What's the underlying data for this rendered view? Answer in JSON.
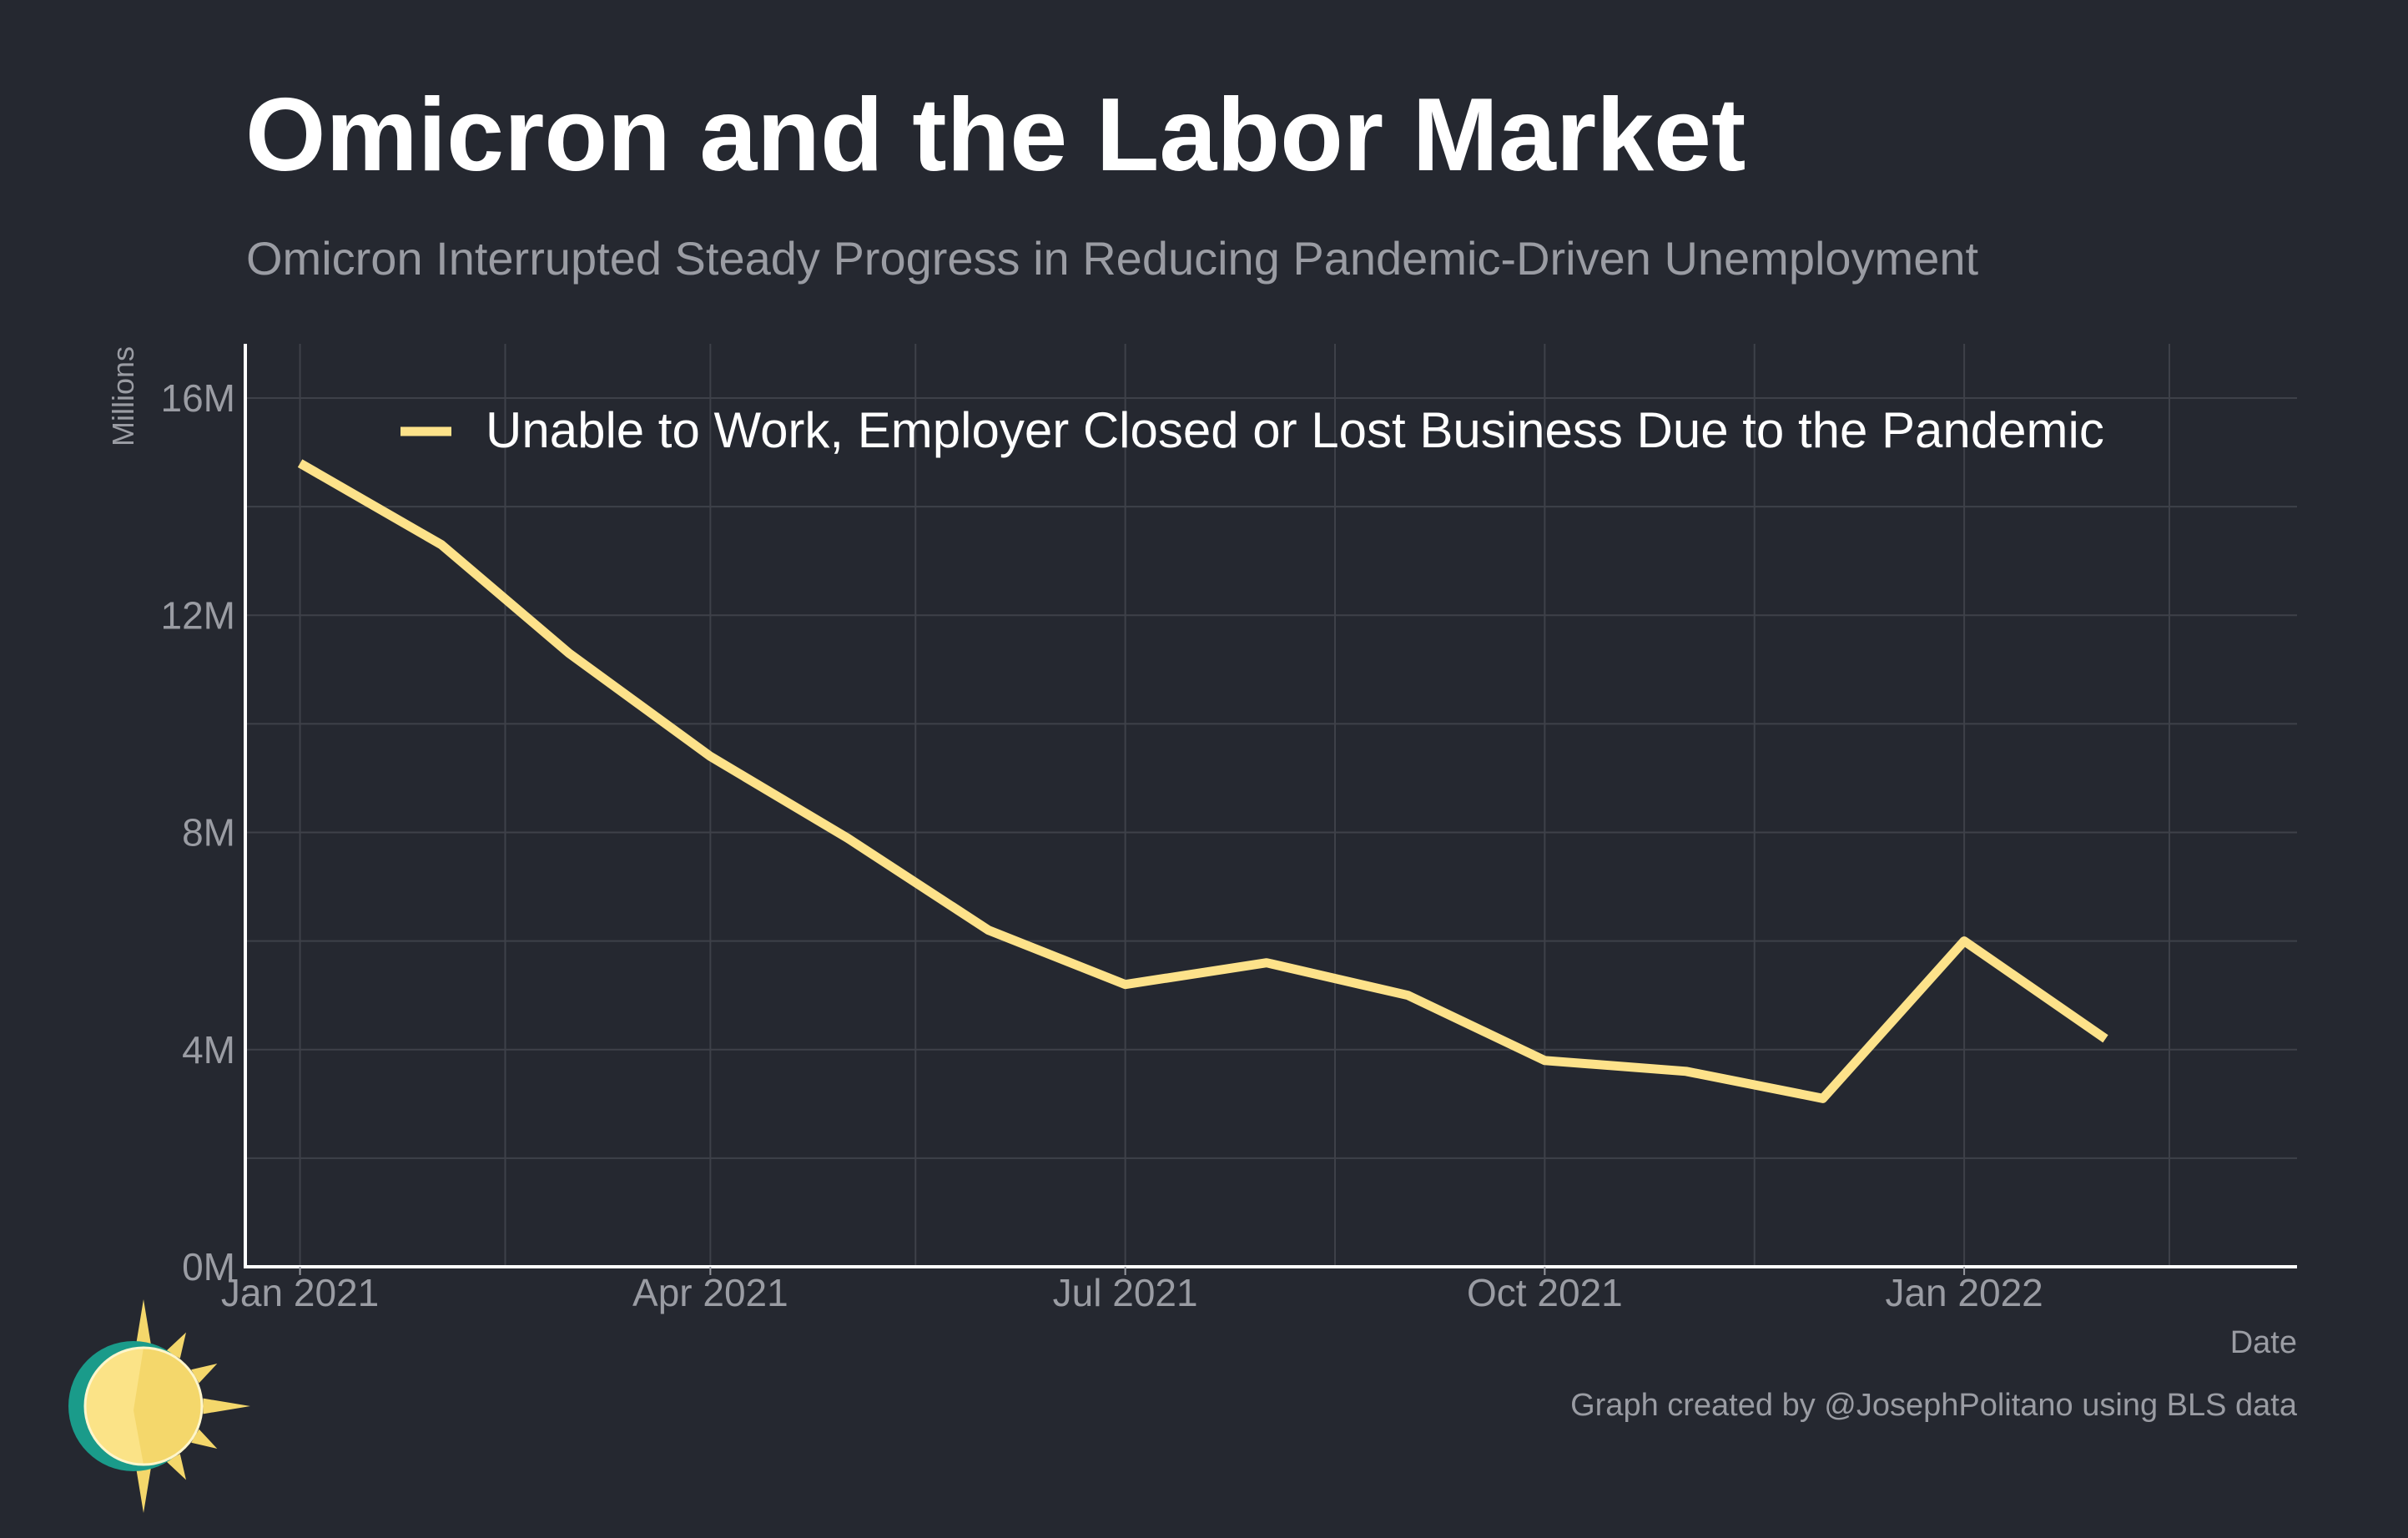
{
  "chart_data": {
    "type": "line",
    "title": "Omicron and the Labor Market",
    "subtitle": "Omicron Interrupted Steady Progress in Reducing Pandemic-Driven Unemployment",
    "ylabel": "Millions",
    "xlabel": "Date",
    "ylim": [
      0,
      17
    ],
    "yticks": [
      0,
      4,
      8,
      12,
      16
    ],
    "ytick_labels": [
      "0M",
      "4M",
      "8M",
      "12M",
      "16M"
    ],
    "x_range": [
      "2020-12-20",
      "2022-03-15"
    ],
    "xticks": [
      "2021-01-01",
      "2021-04-01",
      "2021-07-01",
      "2021-10-01",
      "2022-01-01"
    ],
    "xtick_labels": [
      "Jan 2021",
      "Apr 2021",
      "Jul 2021",
      "Oct 2021",
      "Jan 2022"
    ],
    "x_minor_ticks": [
      "2021-02-15",
      "2021-05-16",
      "2021-08-16",
      "2021-11-16",
      "2022-02-15"
    ],
    "grid": true,
    "legend_position": "top",
    "series": [
      {
        "name": "Unable to Work, Employer Closed or Lost Business Due to the Pandemic",
        "color": "#fde28a",
        "x": [
          "2021-01-01",
          "2021-02-01",
          "2021-03-01",
          "2021-04-01",
          "2021-05-01",
          "2021-06-01",
          "2021-07-01",
          "2021-08-01",
          "2021-09-01",
          "2021-10-01",
          "2021-11-01",
          "2021-12-01",
          "2022-01-01",
          "2022-02-01"
        ],
        "values": [
          14.8,
          13.3,
          11.3,
          9.4,
          7.9,
          6.2,
          5.2,
          5.6,
          5.0,
          3.8,
          3.6,
          3.1,
          6.0,
          4.2
        ]
      }
    ]
  },
  "credit": "Graph created by @JosephPolitano using BLS data",
  "colors": {
    "background": "#252830",
    "line": "#fde28a",
    "text_muted": "#9a9ca3",
    "grid": "#3e4149",
    "axis": "#ffffff"
  },
  "logo": {
    "icon": "sun-logo-icon"
  }
}
